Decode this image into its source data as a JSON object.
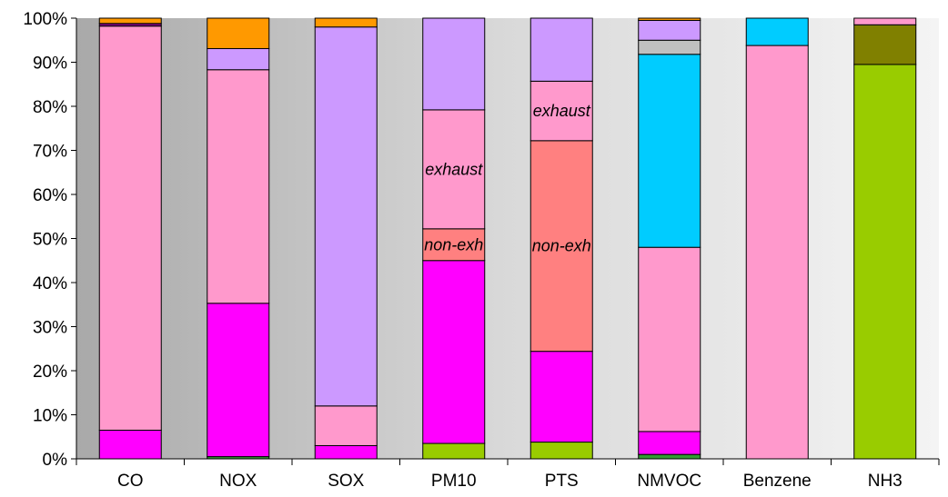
{
  "chart_data": {
    "type": "bar",
    "stacked": true,
    "percent": true,
    "categories": [
      "CO",
      "NOX",
      "SOX",
      "PM10",
      "PTS",
      "NMVOC",
      "Benzene",
      "NH3"
    ],
    "ylim": [
      0,
      100
    ],
    "yticks": [
      "0%",
      "10%",
      "20%",
      "30%",
      "40%",
      "50%",
      "60%",
      "70%",
      "80%",
      "90%",
      "100%"
    ],
    "grid": false,
    "plot_background": "gradient-gray",
    "title": "",
    "xlabel": "",
    "ylabel": "",
    "bars": [
      {
        "category": "CO",
        "segments": [
          {
            "value": 6.5,
            "color": "#ff00ff"
          },
          {
            "value": 91.7,
            "color": "#ff99cc"
          },
          {
            "value": 0.6,
            "color": "#800080"
          },
          {
            "value": 1.2,
            "color": "#ff9900"
          }
        ]
      },
      {
        "category": "NOX",
        "segments": [
          {
            "value": 0.5,
            "color": "#339933"
          },
          {
            "value": 34.8,
            "color": "#ff00ff"
          },
          {
            "value": 53.0,
            "color": "#ff99cc"
          },
          {
            "value": 4.8,
            "color": "#cc99ff"
          },
          {
            "value": 6.9,
            "color": "#ff9900"
          }
        ]
      },
      {
        "category": "SOX",
        "segments": [
          {
            "value": 3.0,
            "color": "#ff00ff"
          },
          {
            "value": 9.0,
            "color": "#ff99cc"
          },
          {
            "value": 86.0,
            "color": "#cc99ff"
          },
          {
            "value": 2.0,
            "color": "#ff9900"
          }
        ]
      },
      {
        "category": "PM10",
        "segments": [
          {
            "value": 3.5,
            "color": "#99cc00"
          },
          {
            "value": 41.5,
            "color": "#ff00ff"
          },
          {
            "value": 7.2,
            "color": "#ff8080",
            "label": "non-exh"
          },
          {
            "value": 27.0,
            "color": "#ff99cc",
            "label": "exhaust"
          },
          {
            "value": 20.8,
            "color": "#cc99ff"
          }
        ]
      },
      {
        "category": "PTS",
        "segments": [
          {
            "value": 3.8,
            "color": "#99cc00"
          },
          {
            "value": 20.6,
            "color": "#ff00ff"
          },
          {
            "value": 47.8,
            "color": "#ff8080",
            "label": "non-exh"
          },
          {
            "value": 13.5,
            "color": "#ff99cc",
            "label": "exhaust"
          },
          {
            "value": 14.3,
            "color": "#cc99ff"
          }
        ]
      },
      {
        "category": "NMVOC",
        "segments": [
          {
            "value": 1.0,
            "color": "#339933"
          },
          {
            "value": 5.2,
            "color": "#ff00ff"
          },
          {
            "value": 41.8,
            "color": "#ff99cc"
          },
          {
            "value": 43.8,
            "color": "#00ccff"
          },
          {
            "value": 3.2,
            "color": "#c0c0c0"
          },
          {
            "value": 4.5,
            "color": "#cc99ff"
          },
          {
            "value": 0.5,
            "color": "#ff9900"
          }
        ]
      },
      {
        "category": "Benzene",
        "segments": [
          {
            "value": 93.8,
            "color": "#ff99cc"
          },
          {
            "value": 6.2,
            "color": "#00ccff"
          }
        ]
      },
      {
        "category": "NH3",
        "segments": [
          {
            "value": 89.5,
            "color": "#99cc00"
          },
          {
            "value": 9.0,
            "color": "#808000"
          },
          {
            "value": 1.5,
            "color": "#ff99cc"
          }
        ]
      }
    ]
  }
}
